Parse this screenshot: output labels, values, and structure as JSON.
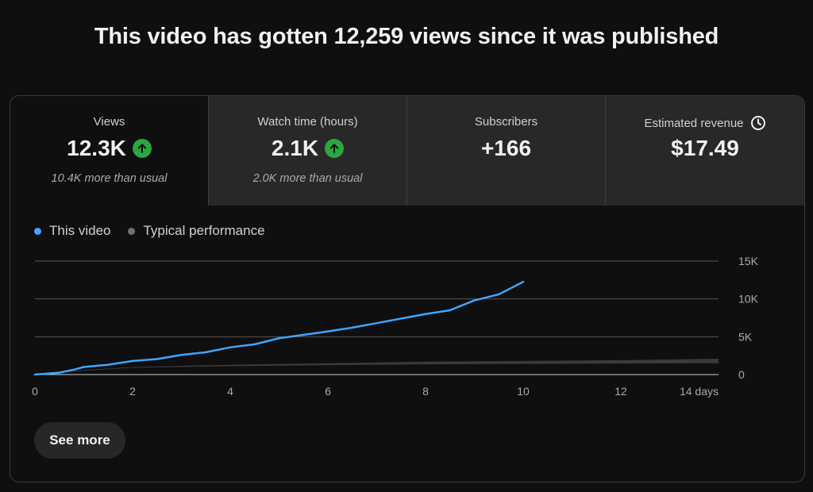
{
  "headline": "This video has gotten 12,259 views since it was published",
  "tabs": [
    {
      "label": "Views",
      "value": "12.3K",
      "trend": "up",
      "sub": "10.4K more than usual",
      "active": true
    },
    {
      "label": "Watch time (hours)",
      "value": "2.1K",
      "trend": "up",
      "sub": "2.0K more than usual",
      "active": false
    },
    {
      "label": "Subscribers",
      "value": "+166",
      "trend": "",
      "sub": "",
      "active": false
    },
    {
      "label": "Estimated revenue",
      "value": "$17.49",
      "trend": "",
      "sub": "",
      "active": false,
      "icon": "clock-icon"
    }
  ],
  "legend": [
    {
      "name": "This video",
      "color": "#3ea6ff"
    },
    {
      "name": "Typical performance",
      "color": "#717171"
    }
  ],
  "see_more_label": "See more",
  "colors": {
    "accent": "#3ea6ff",
    "up": "#2ba640",
    "typical_band": "#3a3a3a"
  },
  "chart_data": {
    "type": "area",
    "xlabel": "",
    "ylabel": "",
    "xlim": [
      0,
      14
    ],
    "ylim": [
      0,
      15000
    ],
    "x_ticks": [
      0,
      2,
      4,
      6,
      8,
      10,
      12,
      14
    ],
    "x_tick_labels": [
      "0",
      "2",
      "4",
      "6",
      "8",
      "10",
      "12",
      "14 days"
    ],
    "y_ticks": [
      0,
      5000,
      10000,
      15000
    ],
    "y_tick_labels": [
      "0",
      "5K",
      "10K",
      "15K"
    ],
    "grid": true,
    "legend_position": "top-left",
    "series": [
      {
        "name": "This video",
        "type": "line",
        "x": [
          0,
          0.5,
          0.8,
          1,
          1.5,
          2,
          2.5,
          3,
          3.5,
          4,
          4.5,
          5,
          5.5,
          6,
          6.5,
          7,
          7.5,
          8,
          8.5,
          9,
          9.5,
          10
        ],
        "y": [
          0,
          250,
          650,
          1000,
          1300,
          1800,
          2050,
          2600,
          2950,
          3600,
          4000,
          4800,
          5250,
          5700,
          6200,
          6800,
          7400,
          8000,
          8500,
          9800,
          10600,
          12259
        ]
      },
      {
        "name": "Typical performance",
        "type": "band",
        "x": [
          0,
          1,
          2,
          4,
          6,
          8,
          10,
          12,
          14
        ],
        "y_low": [
          0,
          500,
          900,
          1100,
          1250,
          1350,
          1400,
          1450,
          1500
        ],
        "y_high": [
          0,
          600,
          1000,
          1300,
          1500,
          1700,
          1800,
          1900,
          2100
        ]
      }
    ]
  }
}
